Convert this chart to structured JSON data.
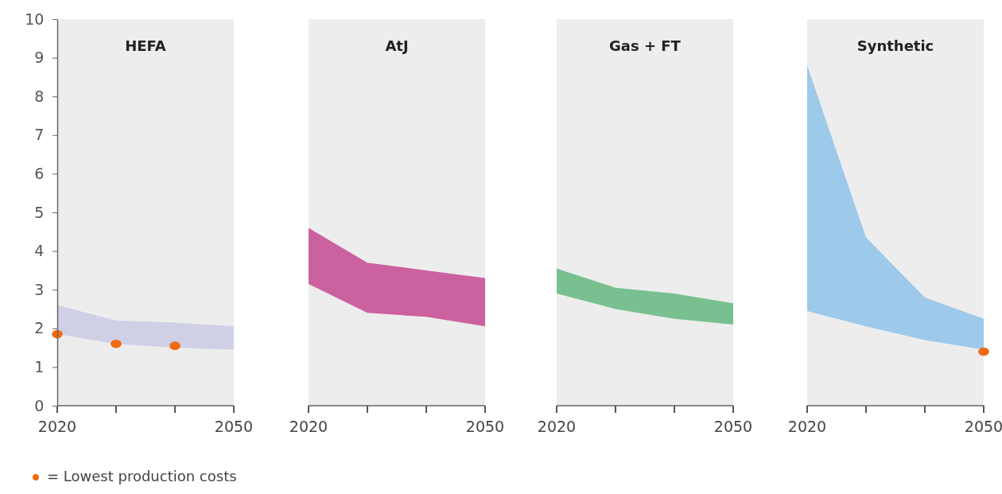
{
  "chart_data": [
    {
      "type": "area",
      "title": "HEFA",
      "x": [
        "2020",
        "2030",
        "2040",
        "2050"
      ],
      "xlim": [
        "2020",
        "2050"
      ],
      "xticks": [
        "2020",
        {
          "value": "2030",
          "label": null
        },
        {
          "value": "2040",
          "label": null
        },
        "2050"
      ],
      "ylim": [
        0,
        10
      ],
      "yticks": [
        0,
        1,
        2,
        3,
        4,
        5,
        6,
        7,
        8,
        9,
        10
      ],
      "grid": false,
      "legend": "bottom",
      "series": [
        {
          "type": "area",
          "color": "#cfcfe6",
          "values": [
            null,
            null,
            null,
            null
          ],
          "lower": [
            1.85,
            1.6,
            1.5,
            1.45
          ],
          "upper": [
            2.6,
            2.2,
            2.15,
            2.05
          ]
        },
        {
          "type": "scatter",
          "name": "= Lowest production costs",
          "color": "#f26a10",
          "marker": "circle",
          "x": [
            "2020",
            "2030",
            "2040"
          ],
          "values": [
            1.85,
            1.6,
            1.55
          ]
        }
      ]
    },
    {
      "type": "area",
      "title": "AtJ",
      "x": [
        "2020",
        "2030",
        "2040",
        "2050"
      ],
      "xlim": [
        "2020",
        "2050"
      ],
      "xticks": [
        "2020",
        {
          "value": "2030",
          "label": null
        },
        {
          "value": "2040",
          "label": null
        },
        "2050"
      ],
      "ylim": [
        0,
        10
      ],
      "tick_labels": "x",
      "grid": false,
      "series": [
        {
          "type": "area",
          "color": "#cc619f",
          "values": [
            null,
            null,
            null,
            null
          ],
          "lower": [
            3.15,
            2.4,
            2.3,
            2.05
          ],
          "upper": [
            4.6,
            3.7,
            3.5,
            3.3
          ]
        }
      ]
    },
    {
      "type": "area",
      "title": "Gas + FT",
      "x": [
        "2020",
        "2030",
        "2040",
        "2050"
      ],
      "xlim": [
        "2020",
        "2050"
      ],
      "xticks": [
        "2020",
        {
          "value": "2030",
          "label": null
        },
        {
          "value": "2040",
          "label": null
        },
        "2050"
      ],
      "ylim": [
        0,
        10
      ],
      "tick_labels": "x",
      "grid": false,
      "series": [
        {
          "type": "area",
          "color": "#78c090",
          "values": [
            null,
            null,
            null,
            null
          ],
          "lower": [
            2.9,
            2.5,
            2.25,
            2.1
          ],
          "upper": [
            3.55,
            3.05,
            2.9,
            2.65
          ]
        }
      ]
    },
    {
      "type": "area",
      "title": "Synthetic",
      "x": [
        "2020",
        "2030",
        "2040",
        "2050"
      ],
      "xlim": [
        "2020",
        "2050"
      ],
      "xticks": [
        "2020",
        {
          "value": "2030",
          "label": null
        },
        {
          "value": "2040",
          "label": null
        },
        "2050"
      ],
      "ylim": [
        0,
        10
      ],
      "tick_labels": "x",
      "grid": false,
      "series": [
        {
          "type": "area",
          "color": "#9dc9ea",
          "values": [
            null,
            null,
            null,
            null
          ],
          "lower": [
            2.45,
            2.05,
            1.7,
            1.45
          ],
          "upper": [
            8.8,
            4.35,
            2.8,
            2.25
          ]
        },
        {
          "type": "scatter",
          "color": "#f26a10",
          "marker": "circle",
          "x": [
            "2050"
          ],
          "values": [
            1.4
          ]
        }
      ]
    }
  ]
}
